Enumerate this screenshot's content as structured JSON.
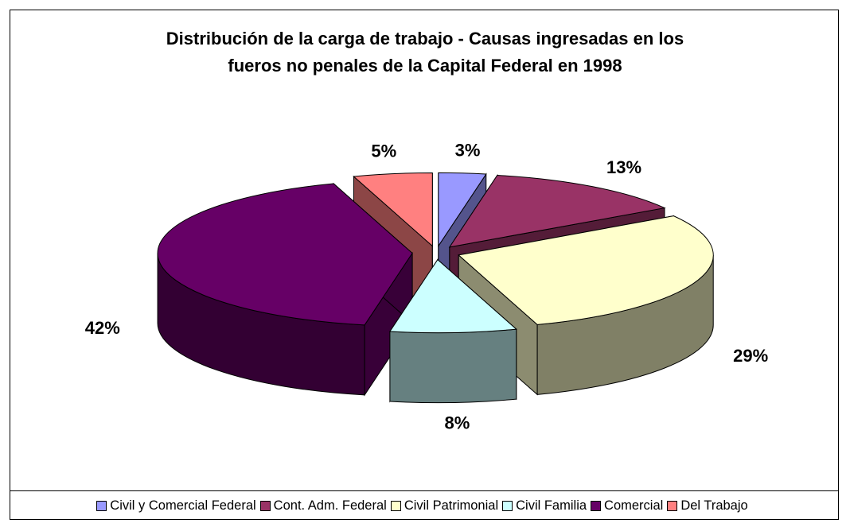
{
  "chart_data": {
    "type": "pie",
    "title": "Distribución de la carga de trabajo - Causas ingresadas en los fueros no penales de la Capital Federal en 1998",
    "categories": [
      "Civil y Comercial Federal",
      "Cont. Adm. Federal",
      "Civil Patrimonial",
      "Civil Familia",
      "Comercial",
      "Del Trabajo"
    ],
    "values": [
      3,
      13,
      29,
      8,
      42,
      5
    ],
    "value_labels": [
      "3%",
      "13%",
      "29%",
      "8%",
      "42%",
      "5%"
    ],
    "colors": [
      "#9999ff",
      "#993366",
      "#ffffcc",
      "#ccffff",
      "#660066",
      "#ff8080"
    ],
    "legend": "bottom"
  }
}
